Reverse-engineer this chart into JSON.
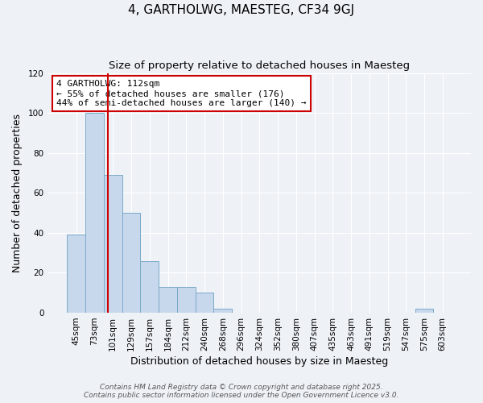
{
  "title": "4, GARTHOLWG, MAESTEG, CF34 9GJ",
  "subtitle": "Size of property relative to detached houses in Maesteg",
  "xlabel": "Distribution of detached houses by size in Maesteg",
  "ylabel": "Number of detached properties",
  "bar_labels": [
    "45sqm",
    "73sqm",
    "101sqm",
    "129sqm",
    "157sqm",
    "184sqm",
    "212sqm",
    "240sqm",
    "268sqm",
    "296sqm",
    "324sqm",
    "352sqm",
    "380sqm",
    "407sqm",
    "435sqm",
    "463sqm",
    "491sqm",
    "519sqm",
    "547sqm",
    "575sqm",
    "603sqm"
  ],
  "bar_values": [
    39,
    100,
    69,
    50,
    26,
    13,
    13,
    10,
    2,
    0,
    0,
    0,
    0,
    0,
    0,
    0,
    0,
    0,
    0,
    2,
    0
  ],
  "bar_color": "#c8d8ec",
  "bar_edge_color": "#7aaac8",
  "vline_x_index": 2,
  "vline_color": "#cc0000",
  "ylim": [
    0,
    120
  ],
  "yticks": [
    0,
    20,
    40,
    60,
    80,
    100,
    120
  ],
  "annotation_title": "4 GARTHOLWG: 112sqm",
  "annotation_line1": "← 55% of detached houses are smaller (176)",
  "annotation_line2": "44% of semi-detached houses are larger (140) →",
  "annotation_box_color": "#cc0000",
  "footer_line1": "Contains HM Land Registry data © Crown copyright and database right 2025.",
  "footer_line2": "Contains public sector information licensed under the Open Government Licence v3.0.",
  "background_color": "#eef2f7",
  "plot_bg_color": "#eef2f7",
  "grid_color": "#ffffff",
  "title_fontsize": 11,
  "subtitle_fontsize": 9.5,
  "axis_label_fontsize": 9,
  "tick_fontsize": 7.5,
  "annotation_fontsize": 8,
  "footer_fontsize": 6.5
}
